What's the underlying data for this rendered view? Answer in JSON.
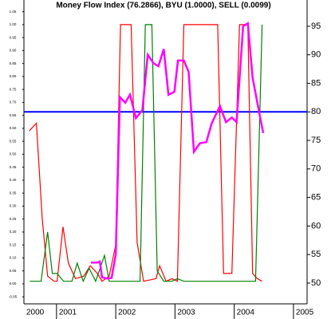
{
  "chart_data": {
    "type": "line",
    "title": "Money Flow Index (76.2866), BYU (1.0000), SELL (0.0099)",
    "xlim": [
      2000.45,
      2005.23
    ],
    "xticks": [
      2000,
      2001,
      2002,
      2003,
      2004,
      2005
    ],
    "ylim": [
      -0.074,
      1.095
    ],
    "yticks": [
      {
        "value": -0.05,
        "label": "-0.05"
      },
      {
        "value": 0,
        "label": "0.00"
      },
      {
        "value": 0.05,
        "label": "0.05"
      },
      {
        "value": 0.1,
        "label": "0.10"
      },
      {
        "value": 0.15,
        "label": "0.15"
      },
      {
        "value": 0.2,
        "label": "0.20"
      },
      {
        "value": 0.25,
        "label": "0.25"
      },
      {
        "value": 0.3,
        "label": "0.30"
      },
      {
        "value": 0.35,
        "label": "0.35"
      },
      {
        "value": 0.4,
        "label": "0.40"
      },
      {
        "value": 0.45,
        "label": "0.45"
      },
      {
        "value": 0.5,
        "label": "0.50"
      },
      {
        "value": 0.55,
        "label": "0.55"
      },
      {
        "value": 0.6,
        "label": "0.60"
      },
      {
        "value": 0.65,
        "label": "0.65"
      },
      {
        "value": 0.7,
        "label": "0.70"
      },
      {
        "value": 0.75,
        "label": "0.75"
      },
      {
        "value": 0.8,
        "label": "0.80"
      },
      {
        "value": 0.85,
        "label": "0.85"
      },
      {
        "value": 0.9,
        "label": "0.90"
      },
      {
        "value": 0.95,
        "label": "0.95"
      },
      {
        "value": 1,
        "label": "1.00"
      },
      {
        "value": 1.05,
        "label": "1.05"
      }
    ],
    "y2lim": [
      46.5,
      99.6
    ],
    "y2ticks": [
      50,
      55,
      60,
      65,
      70,
      75,
      80,
      85,
      90,
      95
    ],
    "reference_line": {
      "value": 80,
      "axis": "y2",
      "color": "#0000ff"
    },
    "series": [
      {
        "color": "#ff0000",
        "x": [
          2000.54,
          2000.66,
          2000.76,
          2000.85,
          2000.96,
          2001.01,
          2001.11,
          2001.2,
          2001.32,
          2001.46,
          2001.57,
          2001.69,
          2001.77,
          2001.89,
          2002.0,
          2002.08,
          2002.26,
          2002.36,
          2002.47,
          2002.68,
          2002.74,
          2002.85,
          2002.95,
          2003.04,
          2003.15,
          2003.72,
          2003.82,
          2003.96,
          2004.09,
          2004.23,
          2004.31,
          2004.39,
          2004.47
        ],
        "values": [
          0.59,
          0.62,
          0.25,
          0.03,
          0.01,
          0.01,
          0.22,
          0.08,
          0.02,
          0.03,
          0.07,
          0.04,
          0.01,
          0.03,
          0.15,
          1.0,
          1.0,
          0.16,
          0.01,
          0.02,
          0.07,
          0.01,
          0.02,
          0.01,
          1.0,
          1.0,
          0.04,
          0.04,
          1.0,
          1.0,
          0.04,
          0.02,
          0.01
        ]
      },
      {
        "color": "#008000",
        "x": [
          2000.55,
          2000.74,
          2000.85,
          2000.93,
          2001.01,
          2001.12,
          2001.26,
          2001.35,
          2001.45,
          2001.55,
          2001.66,
          2001.81,
          2001.89,
          2002.0,
          2002.41,
          2002.5,
          2002.61,
          2002.7,
          2002.81,
          2002.95,
          2003.04,
          2003.15,
          2004.09,
          2004.36,
          2004.47
        ],
        "values": [
          0.01,
          0.01,
          0.2,
          0.04,
          0.04,
          0.01,
          0.01,
          0.08,
          0.01,
          0.06,
          0.01,
          0.11,
          0.01,
          0.01,
          0.01,
          1.0,
          1.0,
          0.05,
          0.01,
          0.01,
          0.02,
          0.01,
          0.01,
          0.01,
          1.0
        ]
      },
      {
        "color": "#ff00ff",
        "axis": "y2",
        "x": [
          2001.58,
          2001.69,
          2001.73,
          2001.77,
          2001.86,
          2001.93,
          2002.0,
          2002.07,
          2002.16,
          2002.24,
          2002.34,
          2002.45,
          2002.54,
          2002.64,
          2002.72,
          2002.81,
          2002.89,
          2002.99,
          2003.05,
          2003.15,
          2003.23,
          2003.32,
          2003.42,
          2003.53,
          2003.62,
          2003.76,
          2003.86,
          2003.96,
          2004.04,
          2004.15,
          2004.23,
          2004.31,
          2004.42,
          2004.49
        ],
        "values": [
          53.6,
          53.6,
          53.8,
          51.0,
          50.8,
          50.9,
          55,
          82.6,
          81.6,
          83,
          78.9,
          80.3,
          90,
          88.5,
          88,
          91,
          83,
          83.5,
          89,
          89,
          87,
          73,
          74.5,
          74.7,
          78,
          81,
          78.2,
          79,
          78.2,
          95,
          95.5,
          86,
          80,
          76.3
        ]
      }
    ]
  }
}
